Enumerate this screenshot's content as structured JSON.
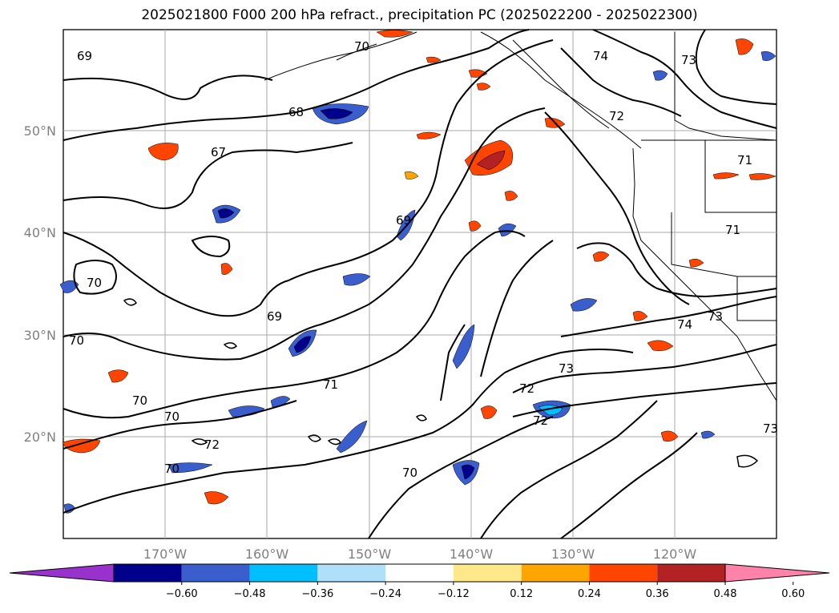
{
  "title": "2025021800 F000 200 hPa refract., precipitation PC (2025022200 - 2025022300)",
  "map": {
    "lon_labels": [
      "170°W",
      "160°W",
      "150°W",
      "140°W",
      "130°W",
      "120°W"
    ],
    "lat_labels": [
      "50°N",
      "40°N",
      "30°N",
      "20°N"
    ],
    "contour_labels": [
      "69",
      "70",
      "68",
      "67",
      "74",
      "73",
      "72",
      "71",
      "69",
      "70",
      "69",
      "70",
      "70",
      "70",
      "71",
      "73",
      "72",
      "72",
      "70",
      "72",
      "70",
      "71",
      "74",
      "73",
      "73"
    ]
  },
  "colorbar": {
    "ticks": [
      "−0.60",
      "−0.48",
      "−0.36",
      "−0.24",
      "−0.12",
      "0.12",
      "0.24",
      "0.36",
      "0.48",
      "0.60"
    ],
    "colors": [
      "#9932cc",
      "#00008b",
      "#3a5fcd",
      "#00bfff",
      "#afe0fa",
      "#ffffff",
      "#ffe88a",
      "#ffa500",
      "#ff4500",
      "#b22222",
      "#ff82ab"
    ]
  }
}
